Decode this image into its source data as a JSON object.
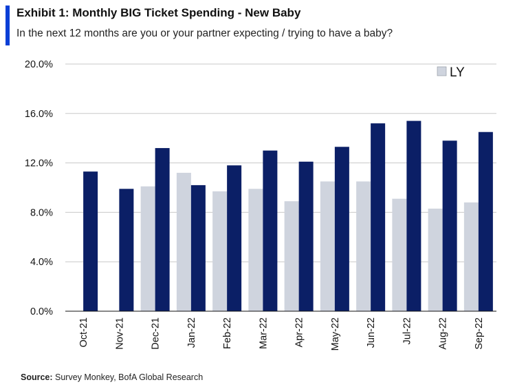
{
  "header": {
    "title": "Exhibit 1: Monthly BIG Ticket Spending - New Baby",
    "subtitle": "In the next 12 months are you or your partner expecting / trying to have a baby?"
  },
  "footer": {
    "source_label": "Source:",
    "source_text": " Survey Monkey, BofA Global Research"
  },
  "colors": {
    "ly": "#cfd4de",
    "ty": "#0b1f66",
    "grid": "#c8c8c8",
    "accent": "#0a3fd6"
  },
  "chart_data": {
    "type": "bar",
    "categories": [
      "Oct-21",
      "Nov-21",
      "Dec-21",
      "Jan-22",
      "Feb-22",
      "Mar-22",
      "Apr-22",
      "May-22",
      "Jun-22",
      "Jul-22",
      "Aug-22",
      "Sep-22"
    ],
    "series": [
      {
        "name": "LY",
        "values": [
          null,
          null,
          10.1,
          11.2,
          9.7,
          9.9,
          8.9,
          10.5,
          10.5,
          9.1,
          8.3,
          8.8
        ]
      },
      {
        "values": [
          11.3,
          9.9,
          13.2,
          10.2,
          11.8,
          13.0,
          12.1,
          13.3,
          15.2,
          15.4,
          13.8,
          14.5
        ]
      }
    ],
    "y_ticks": [
      "0.0%",
      "4.0%",
      "8.0%",
      "12.0%",
      "16.0%",
      "20.0%"
    ],
    "ylim": [
      0,
      20
    ],
    "y_unit": "percent",
    "grid": true,
    "legend_position": "top-right"
  }
}
